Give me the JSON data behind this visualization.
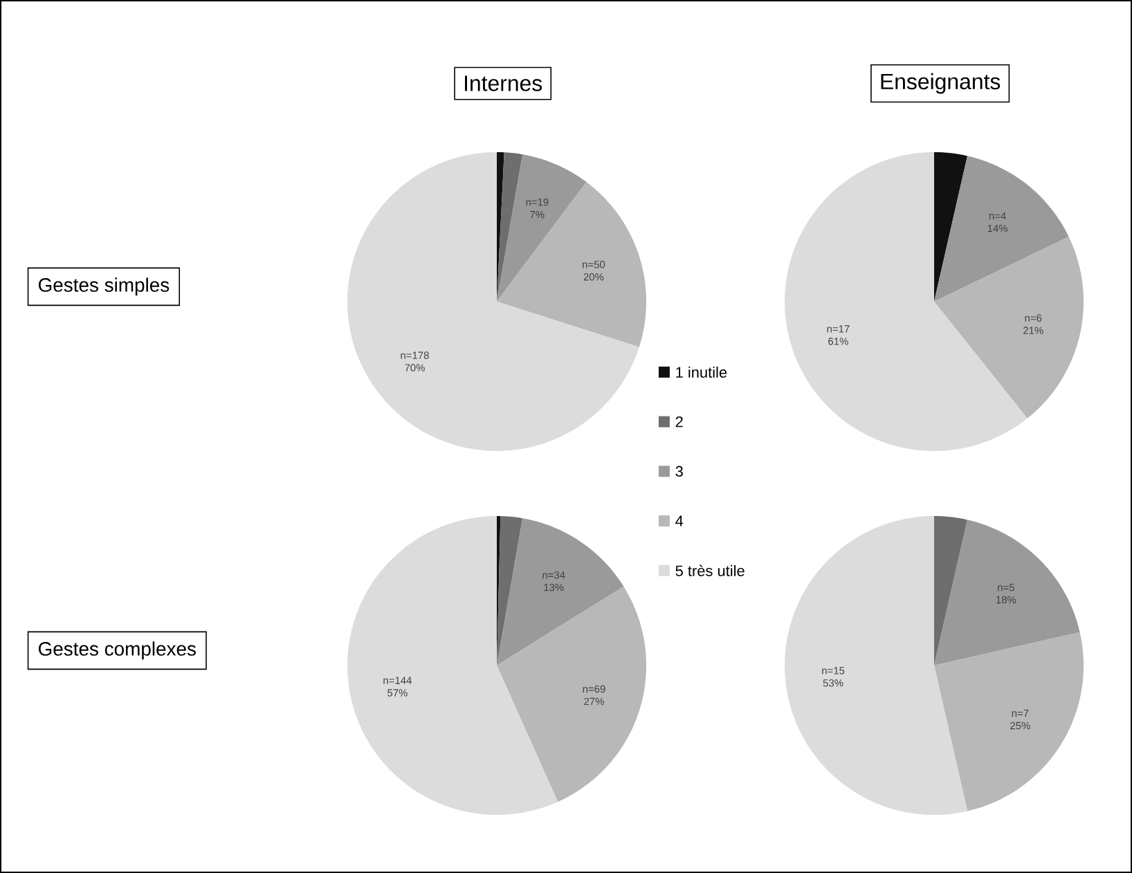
{
  "chart_data": [
    {
      "type": "pie",
      "title": "Internes",
      "ylabel": "Gestes simples",
      "legend": "right",
      "categories": [
        "1 inutile",
        "2",
        "3",
        "4",
        "5 très utile"
      ],
      "values": [
        2,
        5,
        19,
        50,
        178
      ],
      "colors": [
        "#111111",
        "#6e6e6e",
        "#9a9a9a",
        "#b8b8b8",
        "#dcdcdc"
      ],
      "value_labels": [
        null,
        null,
        "n=19 7%",
        "n=50 20%",
        "n=178 70%"
      ]
    },
    {
      "type": "pie",
      "title": "Enseignants",
      "values": [
        1,
        0,
        4,
        6,
        17
      ],
      "colors": [
        "#111111",
        "#6e6e6e",
        "#9a9a9a",
        "#b8b8b8",
        "#dcdcdc"
      ],
      "value_labels": [
        null,
        null,
        "n=4 14%",
        "n=6 21%",
        "n=17 61%"
      ]
    },
    {
      "type": "pie",
      "ylabel": "Gestes complexes",
      "values": [
        1,
        6,
        34,
        69,
        144
      ],
      "colors": [
        "#111111",
        "#6e6e6e",
        "#9a9a9a",
        "#b8b8b8",
        "#dcdcdc"
      ],
      "value_labels": [
        null,
        null,
        "n=34 13%",
        "n=69 27%",
        "n=144 57%"
      ]
    },
    {
      "type": "pie",
      "values": [
        0,
        1,
        5,
        7,
        15
      ],
      "colors": [
        "#111111",
        "#6e6e6e",
        "#9a9a9a",
        "#b8b8b8",
        "#dcdcdc"
      ],
      "value_labels": [
        null,
        null,
        "n=5 18%",
        "n=7 25%",
        "n=15 53%"
      ]
    }
  ]
}
